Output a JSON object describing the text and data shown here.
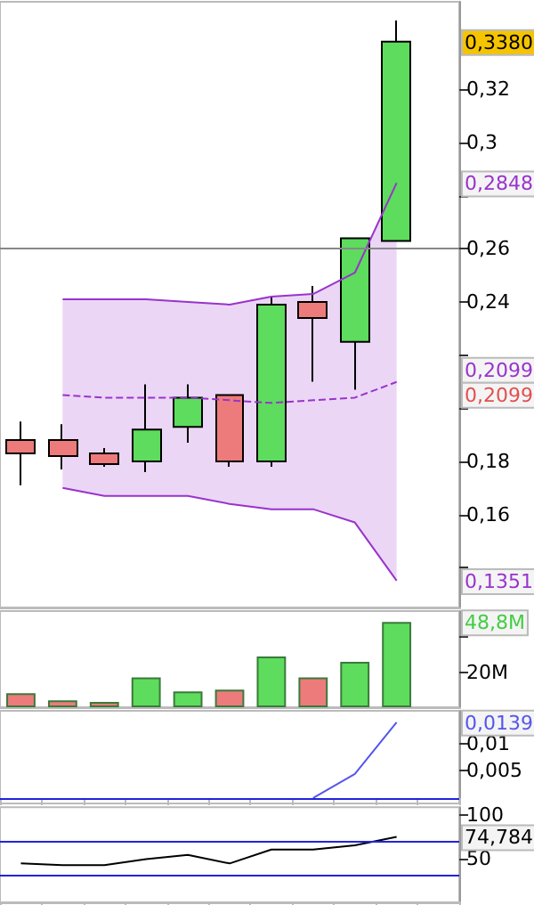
{
  "chart_data": [
    {
      "type": "candlestick",
      "categories": [
        null,
        null,
        null,
        null,
        null,
        null,
        null,
        null,
        null,
        null,
        null
      ],
      "series": [
        {
          "colors": [
            "#ee7b7b",
            "#ee7b7b",
            "#ee7b7b",
            "#5ddc5d",
            "#5ddc5d",
            "#ee7b7b",
            "#5ddc5d",
            "#ee7b7b",
            "#5ddc5d",
            "#5ddc5d",
            null
          ],
          "ohlc": [
            [
              0.188,
              0.195,
              0.171,
              0.183
            ],
            [
              0.188,
              0.194,
              0.177,
              0.182
            ],
            [
              0.183,
              0.185,
              0.178,
              0.179
            ],
            [
              0.18,
              0.209,
              0.176,
              0.192
            ],
            [
              0.193,
              0.209,
              0.187,
              0.204
            ],
            [
              0.205,
              0.205,
              0.178,
              0.18
            ],
            [
              0.18,
              0.242,
              0.178,
              0.239
            ],
            [
              0.24,
              0.246,
              0.21,
              0.234
            ],
            [
              0.225,
              0.264,
              0.207,
              0.264
            ],
            [
              0.263,
              0.346,
              0.263,
              0.338
            ],
            null
          ]
        },
        {
          "type": "line",
          "color": "#9933cc",
          "marker": "none",
          "values": [
            null,
            0.241,
            0.241,
            0.241,
            0.24,
            0.239,
            0.242,
            0.243,
            0.251,
            0.2848,
            null
          ]
        },
        {
          "type": "line",
          "color": "#9933cc",
          "line_style": "dashed",
          "marker": "none",
          "values": [
            null,
            0.205,
            0.204,
            0.204,
            0.204,
            0.203,
            0.202,
            0.203,
            0.204,
            0.2099,
            null
          ],
          "upper": [
            null,
            0.241,
            0.241,
            0.241,
            0.24,
            0.239,
            0.242,
            0.243,
            0.251,
            0.2848,
            null
          ],
          "lower": [
            null,
            0.17,
            0.167,
            0.167,
            0.167,
            0.164,
            0.162,
            0.162,
            0.157,
            0.1351,
            null
          ]
        },
        {
          "type": "line",
          "color": "#9933cc",
          "marker": "none",
          "values": [
            null,
            0.17,
            0.167,
            0.167,
            0.167,
            0.164,
            0.162,
            0.162,
            0.157,
            0.1351,
            null
          ]
        }
      ],
      "ylim": [
        0.125,
        0.353
      ],
      "yticks": [
        {
          "value": 0.14,
          "label": null
        },
        {
          "value": 0.16,
          "label": "0,16"
        },
        {
          "value": 0.18,
          "label": "0,18"
        },
        {
          "value": 0.2,
          "label": null
        },
        {
          "value": 0.22,
          "label": null
        },
        {
          "value": 0.24,
          "label": "0,24"
        },
        {
          "value": 0.26,
          "label": "0,26"
        },
        {
          "value": 0.28,
          "label": null
        },
        {
          "value": 0.3,
          "label": "0,3"
        },
        {
          "value": 0.32,
          "label": "0,32"
        }
      ],
      "ref_lines": [
        {
          "axis": "y",
          "value": 0.26,
          "color": "#888888"
        }
      ],
      "annotations": [
        {
          "text": "0,3380",
          "y": 0.338
        },
        {
          "text": "0,2848",
          "y": 0.2848
        },
        "0,2099",
        "0,2099",
        {
          "text": "0,1351",
          "y": 0.1351
        }
      ],
      "tick_labels": "y",
      "grid": false
    },
    {
      "type": "bar",
      "categories": [
        null,
        null,
        null,
        null,
        null,
        null,
        null,
        null,
        null,
        null,
        null
      ],
      "values": [
        8,
        4,
        3,
        17,
        9,
        10,
        29,
        17,
        26,
        48.8,
        null
      ],
      "colors": [
        "#ee7b7b",
        "#ee7b7b",
        "#ee7b7b",
        "#5ddc5d",
        "#5ddc5d",
        "#ee7b7b",
        "#5ddc5d",
        "#ee7b7b",
        "#5ddc5d",
        "#5ddc5d",
        "#5ddc5d"
      ],
      "ylim": [
        0,
        55
      ],
      "yticks": [
        {
          "value": 20,
          "label": "20M"
        },
        {
          "value": 40,
          "label": null
        }
      ],
      "annotations": [
        {
          "text": "48,8M",
          "y": 48.8
        }
      ],
      "tick_labels": "y",
      "grid": false
    },
    {
      "type": "line",
      "categories": [
        null,
        null,
        null,
        null,
        null,
        null,
        null,
        null,
        null,
        null,
        null
      ],
      "series": [
        {
          "color": "#5555ee",
          "marker": "none",
          "values": [
            null,
            null,
            null,
            null,
            null,
            null,
            null,
            0,
            0.0044,
            0.0139,
            null
          ]
        }
      ],
      "ylim": [
        -0.001,
        0.016
      ],
      "yticks": [
        {
          "value": 0.005,
          "label": "0,005"
        },
        {
          "value": 0.01,
          "label": "0,01"
        }
      ],
      "ref_lines": [
        {
          "axis": "y",
          "value": 0,
          "color": "#2222dd"
        }
      ],
      "annotations": [
        {
          "text": "0,0139",
          "y": 0.0139
        }
      ],
      "tick_labels": "y",
      "grid": false
    },
    {
      "type": "line",
      "categories": [
        null,
        null,
        null,
        null,
        null,
        null,
        null,
        null,
        null,
        null,
        null
      ],
      "series": [
        {
          "color": "#000000",
          "marker": "none",
          "values": [
            44,
            42,
            42,
            49,
            54,
            44,
            60,
            60,
            65,
            74.784,
            null
          ]
        }
      ],
      "ylim": [
        -2,
        109
      ],
      "yticks": [
        50,
        100
      ],
      "ref_lines": [
        {
          "axis": "y",
          "value": 70,
          "color": "#2222dd"
        },
        {
          "axis": "y",
          "value": 30,
          "color": "#2222dd"
        }
      ],
      "annotations": [
        {
          "text": "74,784",
          "y": 74.784
        }
      ],
      "tick_labels": "y",
      "grid": false
    }
  ]
}
